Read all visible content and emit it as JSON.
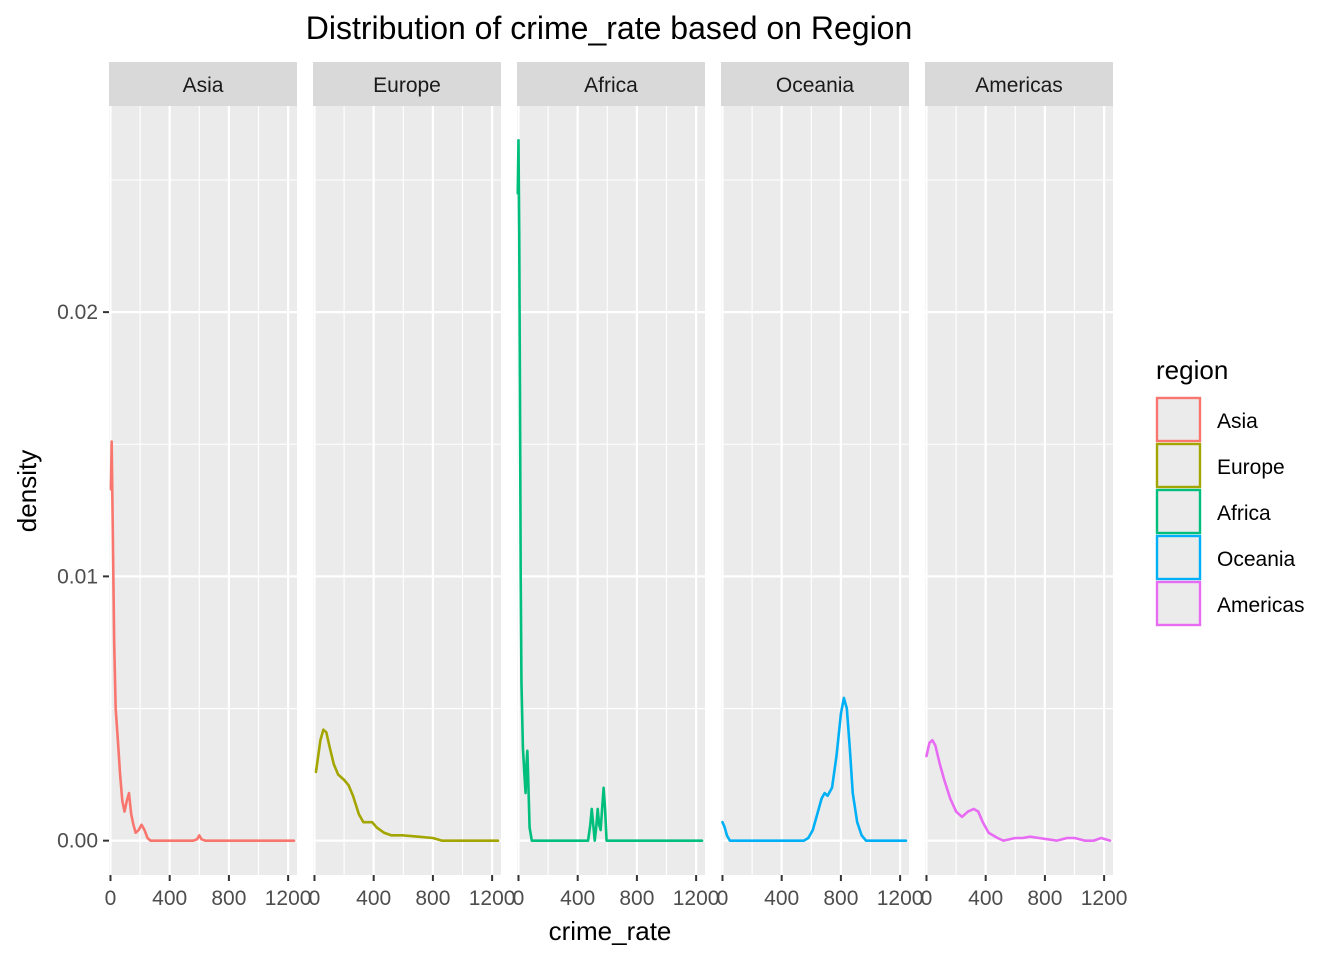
{
  "chart_data": {
    "type": "line",
    "title": "Distribution of crime_rate based on Region",
    "xlabel": "crime_rate",
    "ylabel": "density",
    "xlim": [
      -10,
      1260
    ],
    "ylim": [
      -0.0013,
      0.0278
    ],
    "x_ticks": [
      0,
      400,
      800,
      1200
    ],
    "x_tick_labels": [
      "0",
      "400",
      "800",
      "1200"
    ],
    "y_ticks": [
      0.0,
      0.01,
      0.02
    ],
    "y_tick_labels": [
      "0.00",
      "0.01",
      "0.02"
    ],
    "grid": true,
    "facet_by": "Region",
    "legend": {
      "title": "region",
      "placement": "right",
      "entries": [
        "Asia",
        "Europe",
        "Africa",
        "Oceania",
        "Americas"
      ]
    },
    "series": [
      {
        "name": "Asia",
        "color": "#F8766D",
        "points": [
          [
            3,
            0.0133
          ],
          [
            8,
            0.0151
          ],
          [
            15,
            0.012
          ],
          [
            25,
            0.0075
          ],
          [
            35,
            0.005
          ],
          [
            50,
            0.0038
          ],
          [
            65,
            0.0025
          ],
          [
            80,
            0.0015
          ],
          [
            95,
            0.0011
          ],
          [
            110,
            0.0015
          ],
          [
            125,
            0.0018
          ],
          [
            140,
            0.001
          ],
          [
            155,
            0.0006
          ],
          [
            170,
            0.0003
          ],
          [
            190,
            0.0004
          ],
          [
            210,
            0.0006
          ],
          [
            230,
            0.0004
          ],
          [
            250,
            0.0001
          ],
          [
            270,
            0.0
          ],
          [
            300,
            0.0
          ],
          [
            400,
            0.0
          ],
          [
            560,
            0.0
          ],
          [
            585,
            5e-05
          ],
          [
            600,
            0.0002
          ],
          [
            615,
            5e-05
          ],
          [
            640,
            0.0
          ],
          [
            800,
            0.0
          ],
          [
            1000,
            0.0
          ],
          [
            1240,
            0.0
          ]
        ]
      },
      {
        "name": "Europe",
        "color": "#A3A500",
        "points": [
          [
            10,
            0.0026
          ],
          [
            25,
            0.0032
          ],
          [
            40,
            0.0038
          ],
          [
            60,
            0.0042
          ],
          [
            80,
            0.0041
          ],
          [
            100,
            0.0036
          ],
          [
            130,
            0.0029
          ],
          [
            160,
            0.0025
          ],
          [
            200,
            0.0023
          ],
          [
            230,
            0.0021
          ],
          [
            260,
            0.0017
          ],
          [
            300,
            0.001
          ],
          [
            330,
            0.0007
          ],
          [
            360,
            0.0007
          ],
          [
            390,
            0.0007
          ],
          [
            420,
            0.0005
          ],
          [
            470,
            0.0003
          ],
          [
            520,
            0.0002
          ],
          [
            600,
            0.0002
          ],
          [
            700,
            0.00015
          ],
          [
            800,
            0.0001
          ],
          [
            860,
            0.0
          ],
          [
            1000,
            0.0
          ],
          [
            1240,
            0.0
          ]
        ]
      },
      {
        "name": "Africa",
        "color": "#00BF7D",
        "points": [
          [
            -5,
            0.0245
          ],
          [
            0,
            0.0265
          ],
          [
            5,
            0.023
          ],
          [
            10,
            0.017
          ],
          [
            15,
            0.01
          ],
          [
            20,
            0.006
          ],
          [
            30,
            0.0035
          ],
          [
            40,
            0.0025
          ],
          [
            48,
            0.0018
          ],
          [
            55,
            0.003
          ],
          [
            60,
            0.0034
          ],
          [
            65,
            0.0025
          ],
          [
            75,
            0.0005
          ],
          [
            90,
            0.0
          ],
          [
            200,
            0.0
          ],
          [
            450,
            0.0
          ],
          [
            470,
            0.0
          ],
          [
            485,
            0.0006
          ],
          [
            495,
            0.0012
          ],
          [
            505,
            0.0006
          ],
          [
            515,
            0.0
          ],
          [
            525,
            0.0005
          ],
          [
            535,
            0.0012
          ],
          [
            545,
            0.0006
          ],
          [
            555,
            0.0004
          ],
          [
            565,
            0.0012
          ],
          [
            575,
            0.002
          ],
          [
            585,
            0.0012
          ],
          [
            595,
            0.0
          ],
          [
            700,
            0.0
          ],
          [
            1000,
            0.0
          ],
          [
            1240,
            0.0
          ]
        ]
      },
      {
        "name": "Oceania",
        "color": "#00B0F6",
        "points": [
          [
            0,
            0.0007
          ],
          [
            15,
            0.0005
          ],
          [
            30,
            0.0002
          ],
          [
            50,
            0.0
          ],
          [
            100,
            0.0
          ],
          [
            400,
            0.0
          ],
          [
            500,
            0.0
          ],
          [
            550,
            0.0
          ],
          [
            580,
            0.0001
          ],
          [
            610,
            0.0004
          ],
          [
            640,
            0.001
          ],
          [
            670,
            0.0016
          ],
          [
            690,
            0.0018
          ],
          [
            710,
            0.0017
          ],
          [
            740,
            0.002
          ],
          [
            770,
            0.0032
          ],
          [
            800,
            0.0048
          ],
          [
            820,
            0.0054
          ],
          [
            840,
            0.005
          ],
          [
            860,
            0.0035
          ],
          [
            880,
            0.0018
          ],
          [
            910,
            0.0007
          ],
          [
            940,
            0.0002
          ],
          [
            970,
            0.0
          ],
          [
            1000,
            0.0
          ],
          [
            1240,
            0.0
          ]
        ]
      },
      {
        "name": "Americas",
        "color": "#E76BF3",
        "points": [
          [
            0,
            0.0032
          ],
          [
            20,
            0.0037
          ],
          [
            40,
            0.0038
          ],
          [
            60,
            0.0036
          ],
          [
            90,
            0.0029
          ],
          [
            120,
            0.0023
          ],
          [
            160,
            0.0016
          ],
          [
            200,
            0.0011
          ],
          [
            240,
            0.0009
          ],
          [
            280,
            0.0011
          ],
          [
            320,
            0.0012
          ],
          [
            350,
            0.0011
          ],
          [
            380,
            0.0007
          ],
          [
            420,
            0.0003
          ],
          [
            480,
            0.0001
          ],
          [
            520,
            0.0
          ],
          [
            600,
            0.0001
          ],
          [
            650,
            0.0001
          ],
          [
            700,
            0.00015
          ],
          [
            760,
            0.0001
          ],
          [
            820,
            5e-05
          ],
          [
            880,
            0.0
          ],
          [
            950,
            0.0001
          ],
          [
            1000,
            0.0001
          ],
          [
            1070,
            0.0
          ],
          [
            1130,
            0.0
          ],
          [
            1180,
            0.0001
          ],
          [
            1240,
            0.0
          ]
        ]
      }
    ]
  }
}
